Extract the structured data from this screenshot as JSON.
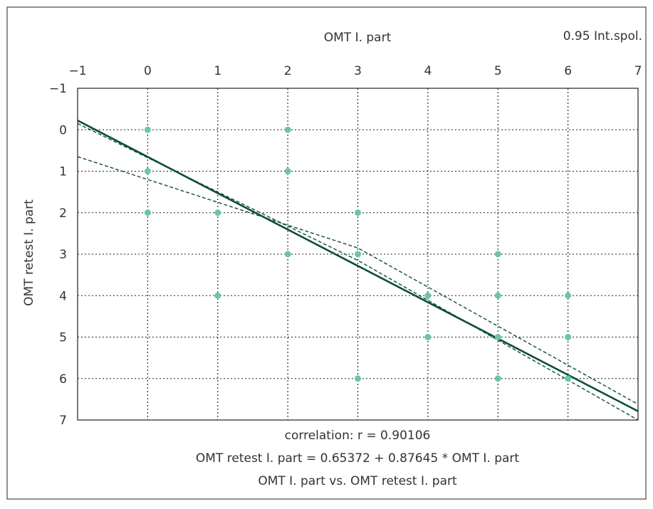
{
  "chart_data": {
    "type": "scatter",
    "title": "OMT I. part vs. OMT retest I. part",
    "xlabel": "OMT I. part",
    "ylabel": "OMT retest I. part",
    "legend_note": "0.95 Int.spol.",
    "correlation_text": "correlation: r = 0.90106",
    "regression_text": "OMT retest I. part = 0.65372 + 0.87645 * OMT I. part",
    "xlim": [
      -1,
      7
    ],
    "ylim": [
      -1,
      7
    ],
    "y_inverted": true,
    "x_axis_position": "top",
    "grid": true,
    "xticks": [
      "−1",
      "0",
      "1",
      "2",
      "3",
      "4",
      "5",
      "6",
      "7"
    ],
    "yticks": [
      "−1",
      "0",
      "1",
      "2",
      "3",
      "4",
      "5",
      "6",
      "7"
    ],
    "points": [
      {
        "x": 0,
        "y": 0
      },
      {
        "x": 0,
        "y": 1
      },
      {
        "x": 0,
        "y": 2
      },
      {
        "x": 1,
        "y": 2
      },
      {
        "x": 1,
        "y": 4
      },
      {
        "x": 2,
        "y": 0
      },
      {
        "x": 2,
        "y": 1
      },
      {
        "x": 2,
        "y": 3
      },
      {
        "x": 3,
        "y": 2
      },
      {
        "x": 3,
        "y": 3
      },
      {
        "x": 3,
        "y": 6
      },
      {
        "x": 4,
        "y": 4
      },
      {
        "x": 4,
        "y": 5
      },
      {
        "x": 5,
        "y": 3
      },
      {
        "x": 5,
        "y": 4
      },
      {
        "x": 5,
        "y": 5
      },
      {
        "x": 5,
        "y": 6
      },
      {
        "x": 6,
        "y": 4
      },
      {
        "x": 6,
        "y": 5
      },
      {
        "x": 6,
        "y": 6
      }
    ],
    "regression": {
      "intercept": 0.65372,
      "slope": 0.87645
    },
    "confidence_band": {
      "upper": [
        {
          "x": -1,
          "y": -0.15
        },
        {
          "x": 3,
          "y": 3.15
        },
        {
          "x": 7,
          "y": 7.0
        }
      ],
      "lower": [
        {
          "x": -1,
          "y": 0.65
        },
        {
          "x": 3,
          "y": 2.85
        },
        {
          "x": 7,
          "y": 6.62
        }
      ]
    },
    "colors": {
      "points": "#6cc4ac",
      "line": "#0d4d3c",
      "grid": "#222222",
      "frame": "#222222"
    }
  }
}
